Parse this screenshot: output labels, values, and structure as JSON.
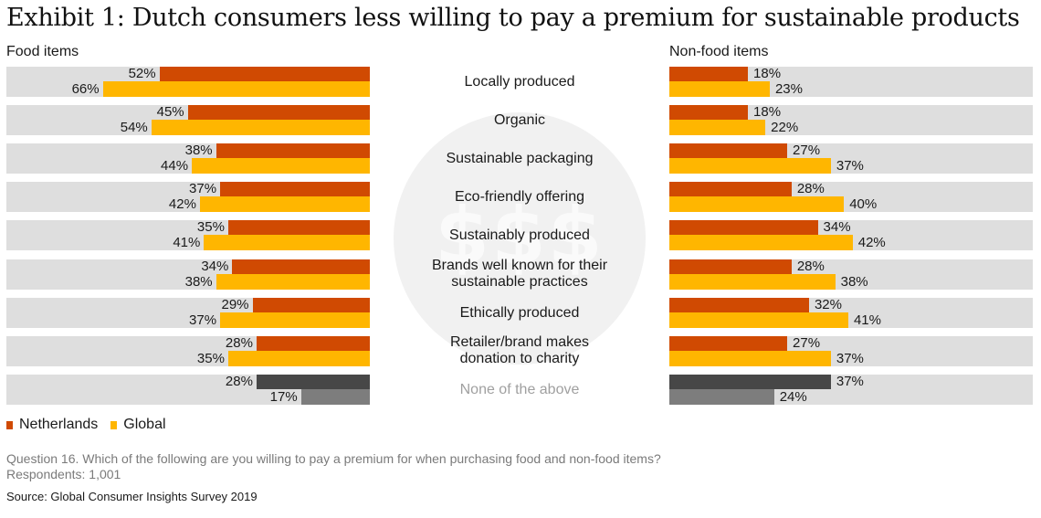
{
  "title": "Exhibit 1: Dutch consumers less willing to pay a premium for sustainable products",
  "panels": {
    "left_label": "Food items",
    "right_label": "Non-food items"
  },
  "center_watermark": "$$$",
  "legend": [
    {
      "label": "Netherlands",
      "color": "#d04a02"
    },
    {
      "label": "Global",
      "color": "#ffb600"
    }
  ],
  "footer": {
    "question": "Question 16. Which of the following are you willing to pay a premium for when purchasing food and non-food items?",
    "respondents": "Respondents: 1,001",
    "source": "Source: Global Consumer Insights Survey 2019"
  },
  "rows": [
    {
      "category": "Locally produced",
      "food": {
        "nl": 52,
        "global": 66,
        "nl_label": "52%",
        "global_label": "66%"
      },
      "nonfood": {
        "nl": 18,
        "global": 23,
        "nl_label": "18%",
        "global_label": "23%"
      }
    },
    {
      "category": "Organic",
      "food": {
        "nl": 45,
        "global": 54,
        "nl_label": "45%",
        "global_label": "54%"
      },
      "nonfood": {
        "nl": 18,
        "global": 22,
        "nl_label": "18%",
        "global_label": "22%"
      }
    },
    {
      "category": "Sustainable packaging",
      "food": {
        "nl": 38,
        "global": 44,
        "nl_label": "38%",
        "global_label": "44%"
      },
      "nonfood": {
        "nl": 27,
        "global": 37,
        "nl_label": "27%",
        "global_label": "37%"
      }
    },
    {
      "category": "Eco-friendly offering",
      "food": {
        "nl": 37,
        "global": 42,
        "nl_label": "37%",
        "global_label": "42%"
      },
      "nonfood": {
        "nl": 28,
        "global": 40,
        "nl_label": "28%",
        "global_label": "40%"
      }
    },
    {
      "category": "Sustainably produced",
      "food": {
        "nl": 35,
        "global": 41,
        "nl_label": "35%",
        "global_label": "41%"
      },
      "nonfood": {
        "nl": 34,
        "global": 42,
        "nl_label": "34%",
        "global_label": "42%"
      }
    },
    {
      "category": "Brands well known for their sustainable practices",
      "category_lines": [
        "Brands well known for their",
        "sustainable practices"
      ],
      "food": {
        "nl": 34,
        "global": 38,
        "nl_label": "34%",
        "global_label": "38%"
      },
      "nonfood": {
        "nl": 28,
        "global": 38,
        "nl_label": "28%",
        "global_label": "38%"
      }
    },
    {
      "category": "Ethically produced",
      "food": {
        "nl": 29,
        "global": 37,
        "nl_label": "29%",
        "global_label": "37%"
      },
      "nonfood": {
        "nl": 32,
        "global": 41,
        "nl_label": "32%",
        "global_label": "41%"
      }
    },
    {
      "category": "Retailer/brand makes donation to charity",
      "category_lines": [
        "Retailer/brand makes",
        "donation to charity"
      ],
      "food": {
        "nl": 28,
        "global": 35,
        "nl_label": "28%",
        "global_label": "35%"
      },
      "nonfood": {
        "nl": 27,
        "global": 37,
        "nl_label": "27%",
        "global_label": "37%"
      }
    },
    {
      "category": "None of the above",
      "food": {
        "nl": 28,
        "global": 17,
        "nl_label": "28%",
        "global_label": "17%"
      },
      "nonfood": {
        "nl": 37,
        "global": 24,
        "nl_label": "37%",
        "global_label": "24%"
      }
    }
  ],
  "chart_data": [
    {
      "type": "bar",
      "orientation": "horizontal",
      "title": "Food items",
      "categories": [
        "Locally produced",
        "Organic",
        "Sustainable packaging",
        "Eco-friendly offering",
        "Sustainably produced",
        "Brands well known for their sustainable practices",
        "Ethically produced",
        "Retailer/brand makes donation to charity",
        "None of the above"
      ],
      "series": [
        {
          "name": "Netherlands",
          "color": "#d04a02",
          "values": [
            52,
            45,
            38,
            37,
            35,
            34,
            29,
            28,
            28
          ]
        },
        {
          "name": "Global",
          "color": "#ffb600",
          "values": [
            66,
            54,
            44,
            42,
            41,
            38,
            37,
            35,
            17
          ]
        }
      ],
      "unit": "%",
      "direction": "bars extend leftward from center",
      "grid": false,
      "legend_position": "bottom-left",
      "note": "'None of the above' row drawn in dark gray (Netherlands) and mid gray (Global)"
    },
    {
      "type": "bar",
      "orientation": "horizontal",
      "title": "Non-food items",
      "categories": [
        "Locally produced",
        "Organic",
        "Sustainable packaging",
        "Eco-friendly offering",
        "Sustainably produced",
        "Brands well known for their sustainable practices",
        "Ethically produced",
        "Retailer/brand makes donation to charity",
        "None of the above"
      ],
      "series": [
        {
          "name": "Netherlands",
          "color": "#d04a02",
          "values": [
            18,
            18,
            27,
            28,
            34,
            28,
            32,
            27,
            37
          ]
        },
        {
          "name": "Global",
          "color": "#ffb600",
          "values": [
            23,
            22,
            37,
            40,
            42,
            38,
            41,
            37,
            24
          ]
        }
      ],
      "unit": "%",
      "direction": "bars extend rightward from center",
      "grid": false,
      "legend_position": "bottom-left",
      "note": "'None of the above' row drawn in dark gray (Netherlands) and mid gray (Global)"
    }
  ]
}
